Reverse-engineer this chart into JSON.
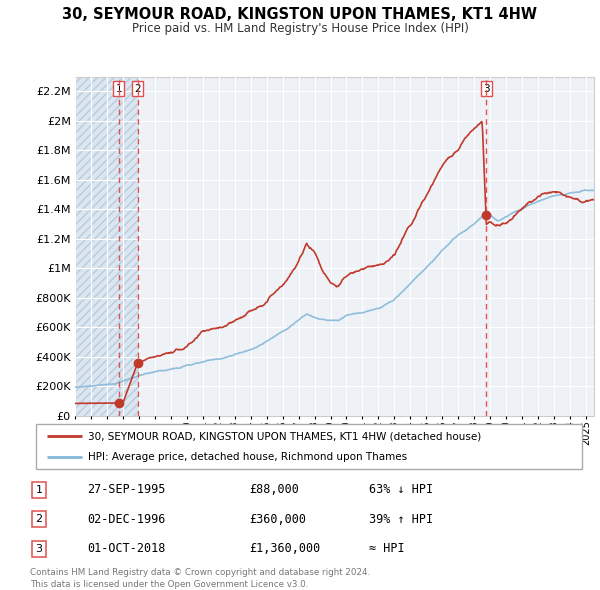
{
  "title": "30, SEYMOUR ROAD, KINGSTON UPON THAMES, KT1 4HW",
  "subtitle": "Price paid vs. HM Land Registry's House Price Index (HPI)",
  "legend_house": "30, SEYMOUR ROAD, KINGSTON UPON THAMES, KT1 4HW (detached house)",
  "legend_hpi": "HPI: Average price, detached house, Richmond upon Thames",
  "transactions": [
    {
      "num": 1,
      "date": "27-SEP-1995",
      "price_disp": "£88,000",
      "pct": "63% ↓ HPI",
      "year": 1995.74,
      "price": 88000
    },
    {
      "num": 2,
      "date": "02-DEC-1996",
      "price_disp": "£360,000",
      "pct": "39% ↑ HPI",
      "year": 1996.92,
      "price": 360000
    },
    {
      "num": 3,
      "date": "01-OCT-2018",
      "price_disp": "£1,360,000",
      "pct": "≈ HPI",
      "year": 2018.75,
      "price": 1360000
    }
  ],
  "house_color": "#c0392b",
  "hpi_color": "#85b8d8",
  "vline_color": "#e05050",
  "bg_chart": "#eef2f7",
  "bg_hatch": "#dce6f0",
  "ylim": [
    0,
    2300000
  ],
  "xlim_start": 1993.0,
  "xlim_end": 2025.5,
  "yticks": [
    0,
    200000,
    400000,
    600000,
    800000,
    1000000,
    1200000,
    1400000,
    1600000,
    1800000,
    2000000,
    2200000
  ],
  "ytick_labels": [
    "£0",
    "£200K",
    "£400K",
    "£600K",
    "£800K",
    "£1M",
    "£1.2M",
    "£1.4M",
    "£1.6M",
    "£1.8M",
    "£2M",
    "£2.2M"
  ],
  "footnote": "Contains HM Land Registry data © Crown copyright and database right 2024.\nThis data is licensed under the Open Government Licence v3.0."
}
